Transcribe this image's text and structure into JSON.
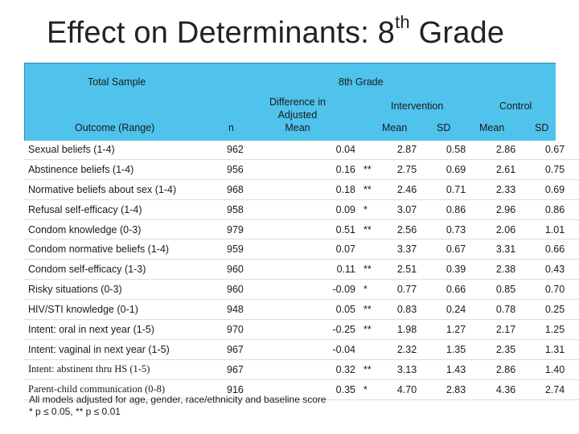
{
  "title": {
    "main": "Effect on Determinants: 8",
    "sup": "th",
    "end": " Grade"
  },
  "header": {
    "total_sample": "Total Sample",
    "grade": "8th Grade",
    "outcome_range": "Outcome (Range)",
    "n": "n",
    "diff_line1": "Difference in",
    "diff_line2": "Adjusted",
    "diff_line3": "Mean",
    "intervention": "Intervention",
    "control": "Control",
    "int_mean": "Mean",
    "int_sd": "SD",
    "ctl_mean": "Mean",
    "ctl_sd": "SD"
  },
  "rows": [
    {
      "outcome": "Sexual beliefs (1-4)",
      "n": "962",
      "diff": "0.04",
      "sig": "",
      "int_mean": "2.87",
      "int_sd": "0.58",
      "ctl_mean": "2.86",
      "ctl_sd": "0.67"
    },
    {
      "outcome": "Abstinence beliefs (1-4)",
      "n": "956",
      "diff": "0.16",
      "sig": "**",
      "int_mean": "2.75",
      "int_sd": "0.69",
      "ctl_mean": "2.61",
      "ctl_sd": "0.75"
    },
    {
      "outcome": "Normative beliefs about sex (1-4)",
      "n": "968",
      "diff": "0.18",
      "sig": "**",
      "int_mean": "2.46",
      "int_sd": "0.71",
      "ctl_mean": "2.33",
      "ctl_sd": "0.69"
    },
    {
      "outcome": "Refusal self-efficacy (1-4)",
      "n": "958",
      "diff": "0.09",
      "sig": "*",
      "int_mean": "3.07",
      "int_sd": "0.86",
      "ctl_mean": "2.96",
      "ctl_sd": "0.86"
    },
    {
      "outcome": "Condom knowledge (0-3)",
      "n": "979",
      "diff": "0.51",
      "sig": "**",
      "int_mean": "2.56",
      "int_sd": "0.73",
      "ctl_mean": "2.06",
      "ctl_sd": "1.01"
    },
    {
      "outcome": "Condom normative beliefs (1-4)",
      "n": "959",
      "diff": "0.07",
      "sig": "",
      "int_mean": "3.37",
      "int_sd": "0.67",
      "ctl_mean": "3.31",
      "ctl_sd": "0.66"
    },
    {
      "outcome": "Condom self-efficacy (1-3)",
      "n": "960",
      "diff": "0.11",
      "sig": "**",
      "int_mean": "2.51",
      "int_sd": "0.39",
      "ctl_mean": "2.38",
      "ctl_sd": "0.43"
    },
    {
      "outcome": "Risky situations (0-3)",
      "n": "960",
      "diff": "-0.09",
      "sig": "*",
      "int_mean": "0.77",
      "int_sd": "0.66",
      "ctl_mean": "0.85",
      "ctl_sd": "0.70"
    },
    {
      "outcome": "HIV/STI knowledge (0-1)",
      "n": "948",
      "diff": "0.05",
      "sig": "**",
      "int_mean": "0.83",
      "int_sd": "0.24",
      "ctl_mean": "0.78",
      "ctl_sd": "0.25"
    },
    {
      "outcome": "Intent: oral in next year (1-5)",
      "n": "970",
      "diff": "-0.25",
      "sig": "**",
      "int_mean": "1.98",
      "int_sd": "1.27",
      "ctl_mean": "2.17",
      "ctl_sd": "1.25"
    },
    {
      "outcome": "Intent: vaginal in next year (1-5)",
      "n": "967",
      "diff": "-0.04",
      "sig": "",
      "int_mean": "2.32",
      "int_sd": "1.35",
      "ctl_mean": "2.35",
      "ctl_sd": "1.31"
    },
    {
      "outcome": "Intent: abstinent thru HS (1-5)",
      "n": "967",
      "diff": "0.32",
      "sig": "**",
      "int_mean": "3.13",
      "int_sd": "1.43",
      "ctl_mean": "2.86",
      "ctl_sd": "1.40"
    },
    {
      "outcome": "Parent-child communication (0-8)",
      "n": "916",
      "diff": "0.35",
      "sig": "*",
      "int_mean": "4.70",
      "int_sd": "2.83",
      "ctl_mean": "4.36",
      "ctl_sd": "2.74"
    }
  ],
  "footnote": {
    "line1": "All models adjusted for age, gender,  race/ethnicity and baseline score",
    "line2": "* p ≤ 0.05, ** p ≤ 0.01"
  }
}
